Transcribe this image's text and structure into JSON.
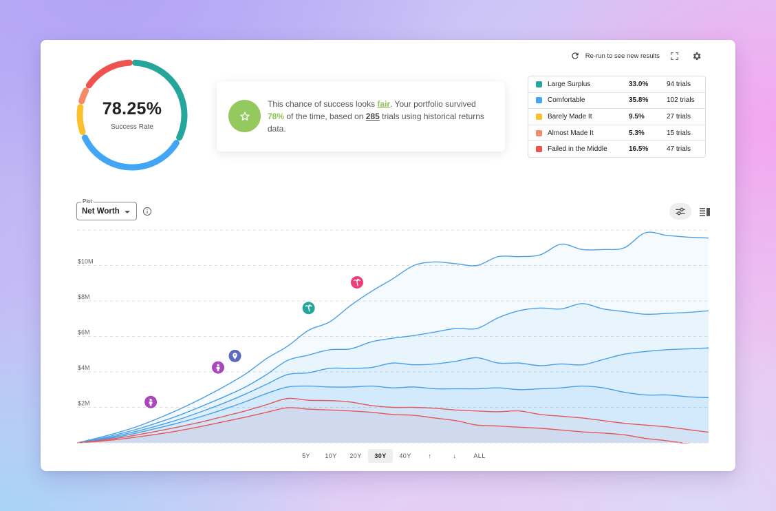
{
  "toolbar": {
    "rerun_label": "Re-run to see new results",
    "rerun_icon": "refresh-icon",
    "fullscreen_icon": "fullscreen-icon",
    "settings_icon": "gear-icon"
  },
  "success": {
    "rate": "78.25%",
    "label": "Success Rate"
  },
  "summary": {
    "prefix": "This chance of success looks ",
    "rating": "fair",
    "middle": ". Your portfolio survived ",
    "percent": "78%",
    "middle2": " of the time, based on ",
    "trials": "285",
    "suffix": " trials using historical returns data.",
    "badge_icon": "star-icon",
    "badge_color": "#94c95e"
  },
  "outcomes": [
    {
      "name": "Large Surplus",
      "percent": "33.0%",
      "trials": "94 trials",
      "color": "#26a69a"
    },
    {
      "name": "Comfortable",
      "percent": "35.8%",
      "trials": "102 trials",
      "color": "#42a5f5"
    },
    {
      "name": "Barely Made It",
      "percent": "9.5%",
      "trials": "27 trials",
      "color": "#fbc02d"
    },
    {
      "name": "Almost Made It",
      "percent": "5.3%",
      "trials": "15 trials",
      "color": "#f58a6b"
    },
    {
      "name": "Failed in the Middle",
      "percent": "16.5%",
      "trials": "47 trials",
      "color": "#ef5350"
    }
  ],
  "plot": {
    "label": "Plot",
    "value": "Net Worth",
    "info_icon": "info-icon",
    "filter_icon": "sliders-icon",
    "table_icon": "table-view-icon"
  },
  "ranges": [
    {
      "label": "5Y",
      "active": false
    },
    {
      "label": "10Y",
      "active": false
    },
    {
      "label": "20Y",
      "active": false
    },
    {
      "label": "30Y",
      "active": true
    },
    {
      "label": "40Y",
      "active": false
    },
    {
      "label": "↑",
      "active": false
    },
    {
      "label": "↓",
      "active": false
    },
    {
      "label": "ALL",
      "active": false
    }
  ],
  "chart_data": {
    "type": "area",
    "x": [
      0,
      1,
      2,
      3,
      4,
      5,
      6,
      7,
      8,
      9,
      10,
      11,
      12,
      13,
      14,
      15,
      16,
      17,
      18,
      19,
      20,
      21,
      22,
      23,
      24,
      25,
      26,
      27,
      28,
      29,
      30
    ],
    "yticks": [
      "$2M",
      "$4M",
      "$6M",
      "$8M",
      "$10M"
    ],
    "ylim": [
      0,
      12000000
    ],
    "grid": true,
    "series": [
      {
        "color": "#4a9fe6",
        "values": [
          0,
          0.28,
          0.6,
          0.98,
          1.45,
          1.97,
          2.55,
          3.18,
          3.88,
          4.75,
          5.45,
          6.35,
          6.82,
          7.75,
          8.55,
          9.25,
          10.0,
          10.2,
          10.1,
          10.0,
          10.5,
          10.5,
          10.6,
          11.2,
          10.9,
          10.9,
          11.0,
          11.85,
          11.7,
          11.6,
          11.55
        ]
      },
      {
        "color": "#4a9fe6",
        "values": [
          0,
          0.22,
          0.5,
          0.82,
          1.2,
          1.62,
          2.1,
          2.6,
          3.15,
          3.85,
          4.65,
          4.95,
          5.25,
          5.3,
          5.7,
          5.9,
          6.05,
          6.25,
          6.45,
          6.45,
          7.05,
          7.45,
          7.6,
          7.55,
          7.85,
          7.55,
          7.4,
          7.25,
          7.3,
          7.35,
          7.45
        ]
      },
      {
        "color": "#4a9fe6",
        "values": [
          0,
          0.18,
          0.42,
          0.7,
          1.02,
          1.38,
          1.8,
          2.25,
          2.75,
          3.3,
          3.85,
          3.95,
          4.2,
          4.2,
          4.25,
          4.5,
          4.4,
          4.45,
          4.6,
          4.8,
          4.5,
          4.5,
          4.35,
          4.45,
          4.4,
          4.7,
          5.0,
          5.15,
          5.25,
          5.3,
          5.35
        ]
      },
      {
        "color": "#4a9fe6",
        "values": [
          0,
          0.15,
          0.35,
          0.6,
          0.88,
          1.18,
          1.52,
          1.9,
          2.32,
          2.78,
          3.15,
          3.2,
          3.15,
          3.15,
          3.2,
          3.1,
          3.15,
          3.05,
          3.05,
          3.05,
          3.1,
          3.0,
          3.05,
          3.1,
          3.2,
          3.1,
          2.85,
          2.7,
          2.7,
          2.6,
          2.55
        ]
      },
      {
        "color": "#e5575a",
        "values": [
          0,
          0.12,
          0.28,
          0.48,
          0.7,
          0.94,
          1.2,
          1.5,
          1.8,
          2.15,
          2.5,
          2.4,
          2.38,
          2.3,
          2.1,
          2.0,
          2.0,
          1.95,
          1.85,
          1.8,
          1.75,
          1.8,
          1.6,
          1.5,
          1.4,
          1.25,
          1.1,
          1.0,
          0.9,
          0.75,
          0.6
        ]
      },
      {
        "color": "#e5575a",
        "values": [
          0,
          0.08,
          0.2,
          0.35,
          0.52,
          0.72,
          0.95,
          1.2,
          1.45,
          1.72,
          1.98,
          1.9,
          1.85,
          1.8,
          1.72,
          1.6,
          1.55,
          1.4,
          1.25,
          1.0,
          0.95,
          0.88,
          0.82,
          0.72,
          0.62,
          0.55,
          0.45,
          0.25,
          0.12,
          -0.05,
          -0.2
        ]
      }
    ],
    "markers": [
      {
        "x": 3.5,
        "y": 2.3,
        "color": "#ab47bc",
        "icon": "person-icon"
      },
      {
        "x": 6.7,
        "y": 4.25,
        "color": "#ab47bc",
        "icon": "person-icon"
      },
      {
        "x": 7.5,
        "y": 4.9,
        "color": "#5c6bc0",
        "icon": "location-pin-icon"
      },
      {
        "x": 11.0,
        "y": 7.6,
        "color": "#26a69a",
        "icon": "palm-tree-icon"
      },
      {
        "x": 13.3,
        "y": 9.05,
        "color": "#ec407a",
        "icon": "palm-tree-icon"
      }
    ]
  }
}
